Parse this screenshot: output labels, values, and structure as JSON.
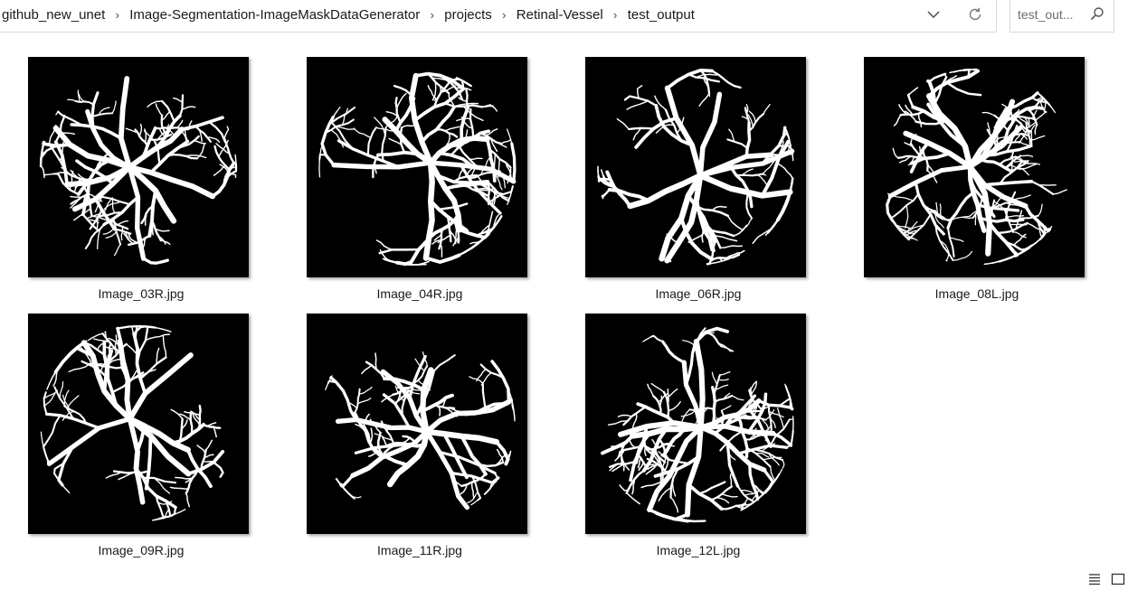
{
  "breadcrumb": {
    "items": [
      {
        "label": "github_new_unet"
      },
      {
        "label": "Image-Segmentation-ImageMaskDataGenerator"
      },
      {
        "label": "projects"
      },
      {
        "label": "Retinal-Vessel"
      },
      {
        "label": "test_output"
      }
    ]
  },
  "address_bar": {
    "dropdown_icon": "chevron-down-icon",
    "refresh_icon": "refresh-icon"
  },
  "search": {
    "placeholder": "test_out...",
    "icon": "search-icon"
  },
  "files": [
    {
      "name": "Image_03R.jpg",
      "thumbnail": "retinal-vessel-mask"
    },
    {
      "name": "Image_04R.jpg",
      "thumbnail": "retinal-vessel-mask"
    },
    {
      "name": "Image_06R.jpg",
      "thumbnail": "retinal-vessel-mask"
    },
    {
      "name": "Image_08L.jpg",
      "thumbnail": "retinal-vessel-mask"
    },
    {
      "name": "Image_09R.jpg",
      "thumbnail": "retinal-vessel-mask"
    },
    {
      "name": "Image_11R.jpg",
      "thumbnail": "retinal-vessel-mask"
    },
    {
      "name": "Image_12L.jpg",
      "thumbnail": "retinal-vessel-mask"
    }
  ],
  "status_bar": {
    "details_view_icon": "details-view-icon",
    "large_icons_view_icon": "large-icons-view-icon"
  },
  "colors": {
    "thumbnail_background": "#000000",
    "vessel": "#ffffff",
    "border": "#d9d9d9"
  }
}
